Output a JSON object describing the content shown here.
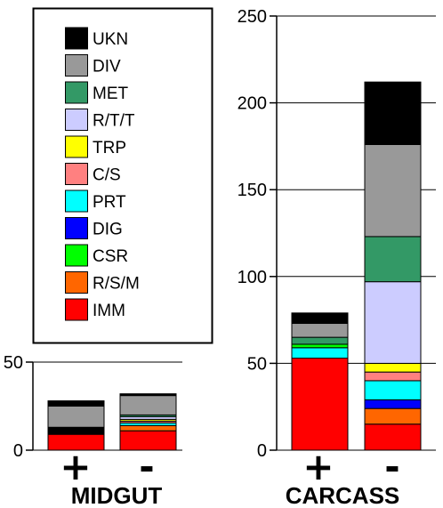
{
  "chart_data": {
    "type": "bar",
    "stacked": true,
    "legend": {
      "placement": "top-left",
      "order": [
        "UKN",
        "DIV",
        "MET",
        "R/T/T",
        "TRP",
        "C/S",
        "PRT",
        "DIG",
        "CSR",
        "R/S/M",
        "IMM"
      ]
    },
    "series_colors": {
      "IMM": "#ff0000",
      "R/S/M": "#ff6600",
      "CSR": "#00ff00",
      "DIG": "#0000ff",
      "PRT": "#00ffff",
      "C/S": "#ff8080",
      "TRP": "#ffff00",
      "R/T/T": "#ccccff",
      "MET": "#339966",
      "DIV": "#999999",
      "UKN": "#000000"
    },
    "panels": [
      {
        "title": "MIDGUT",
        "ylim": [
          0,
          50
        ],
        "yticks": [
          0,
          50
        ],
        "grid": true,
        "categories": [
          "+",
          "-"
        ],
        "bars": [
          {
            "category": "+",
            "segments": [
              {
                "series": "IMM",
                "value": 9
              },
              {
                "series": "UKN",
                "value": 4
              },
              {
                "series": "DIV",
                "value": 12
              },
              {
                "series": "UKN",
                "value": 3
              }
            ]
          },
          {
            "category": "-",
            "segments": [
              {
                "series": "IMM",
                "value": 11
              },
              {
                "series": "R/S/M",
                "value": 3
              },
              {
                "series": "PRT",
                "value": 1.5
              },
              {
                "series": "C/S",
                "value": 1
              },
              {
                "series": "TRP",
                "value": 1
              },
              {
                "series": "R/T/T",
                "value": 1.5
              },
              {
                "series": "MET",
                "value": 1
              },
              {
                "series": "DIV",
                "value": 11
              },
              {
                "series": "UKN",
                "value": 1
              }
            ]
          }
        ]
      },
      {
        "title": "CARCASS",
        "ylim": [
          0,
          250
        ],
        "yticks": [
          0,
          50,
          100,
          150,
          200,
          250
        ],
        "grid": true,
        "categories": [
          "+",
          "-"
        ],
        "bars": [
          {
            "category": "+",
            "segments": [
              {
                "series": "IMM",
                "value": 53
              },
              {
                "series": "PRT",
                "value": 6
              },
              {
                "series": "CSR",
                "value": 2
              },
              {
                "series": "MET",
                "value": 4
              },
              {
                "series": "DIV",
                "value": 8
              },
              {
                "series": "UKN",
                "value": 6
              }
            ]
          },
          {
            "category": "-",
            "segments": [
              {
                "series": "IMM",
                "value": 15
              },
              {
                "series": "R/S/M",
                "value": 9
              },
              {
                "series": "DIG",
                "value": 5
              },
              {
                "series": "PRT",
                "value": 11
              },
              {
                "series": "C/S",
                "value": 5
              },
              {
                "series": "TRP",
                "value": 5
              },
              {
                "series": "R/T/T",
                "value": 47
              },
              {
                "series": "MET",
                "value": 26
              },
              {
                "series": "DIV",
                "value": 53
              },
              {
                "series": "UKN",
                "value": 36
              }
            ]
          }
        ]
      }
    ]
  }
}
